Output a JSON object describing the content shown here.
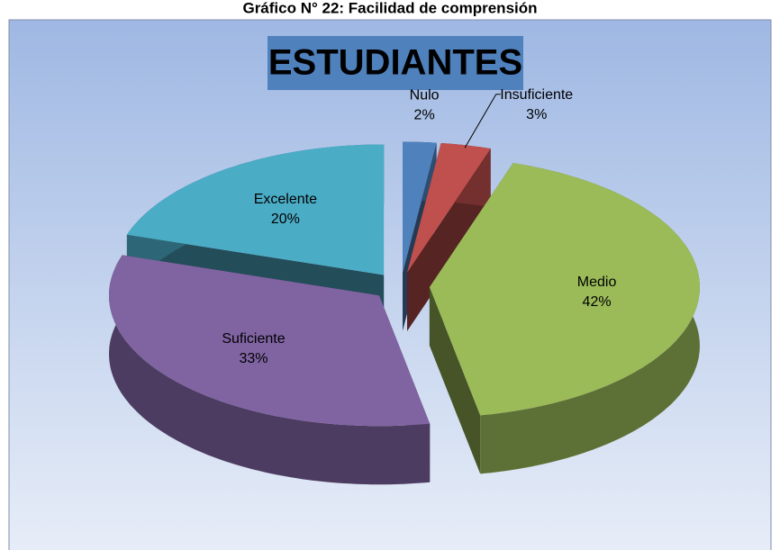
{
  "chart_data": {
    "type": "pie3d",
    "title": "Gráfico N° 22: Facilidad de comprensión",
    "subtitle": "ESTUDIANTES",
    "categories": [
      "Nulo",
      "Insuficiente",
      "Medio",
      "Suficiente",
      "Excelente"
    ],
    "values": [
      2,
      3,
      42,
      33,
      20
    ],
    "value_labels": [
      "2%",
      "3%",
      "42%",
      "33%",
      "20%"
    ],
    "colors": [
      "#4f81bd",
      "#c0504d",
      "#9bbb59",
      "#8064a2",
      "#4bacc6"
    ]
  }
}
